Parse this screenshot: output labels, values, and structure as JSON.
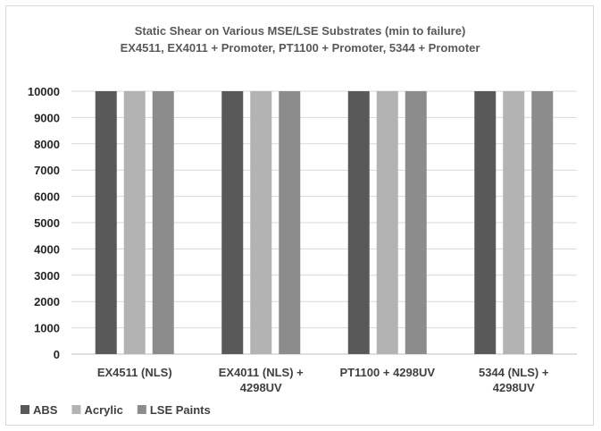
{
  "chart_data": {
    "type": "bar",
    "title": [
      "Static Shear on Various MSE/LSE Substrates (min to failure)",
      "EX4511, EX4011 + Promoter, PT1100 + Promoter, 5344 + Promoter"
    ],
    "xlabel": "",
    "ylabel": "",
    "categories": [
      [
        "EX4511 (NLS)"
      ],
      [
        "EX4011 (NLS) +",
        "4298UV"
      ],
      [
        "PT1100 + 4298UV"
      ],
      [
        "5344 (NLS) +",
        "4298UV"
      ]
    ],
    "series": [
      {
        "name": "ABS",
        "color": "#595959",
        "values": [
          10000,
          10000,
          10000,
          10000
        ]
      },
      {
        "name": "Acrylic",
        "color": "#b3b3b3",
        "values": [
          10000,
          10000,
          10000,
          10000
        ]
      },
      {
        "name": "LSE Paints",
        "color": "#8c8c8c",
        "values": [
          10000,
          10000,
          10000,
          10000
        ]
      }
    ],
    "ylim": [
      0,
      10000
    ],
    "yticks": [
      "0",
      "1000",
      "2000",
      "3000",
      "4000",
      "5000",
      "6000",
      "7000",
      "8000",
      "9000",
      "10000"
    ],
    "grid": true,
    "legend_position": "bottom-left"
  }
}
